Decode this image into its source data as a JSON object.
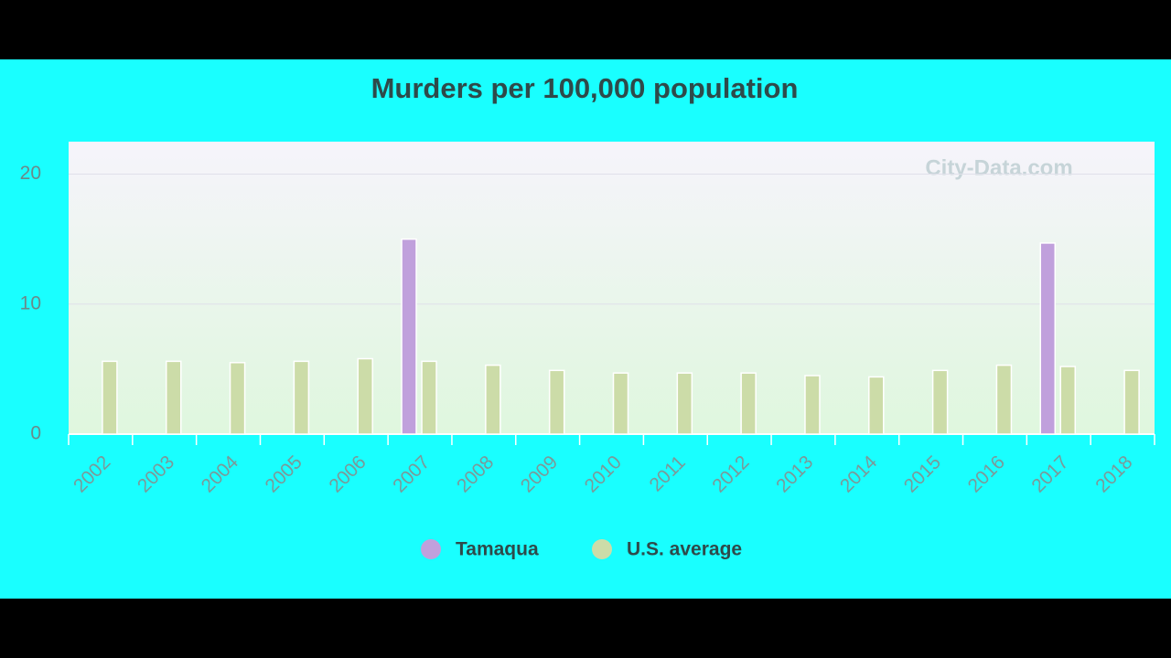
{
  "chart_data": {
    "type": "bar",
    "title": "Murders per 100,000 population",
    "watermark": "City-Data.com",
    "categories": [
      "2002",
      "2003",
      "2004",
      "2005",
      "2006",
      "2007",
      "2008",
      "2009",
      "2010",
      "2011",
      "2012",
      "2013",
      "2014",
      "2015",
      "2016",
      "2017",
      "2018"
    ],
    "series": [
      {
        "name": "Tamaqua",
        "color": "#c0a0dc",
        "values": [
          null,
          null,
          null,
          null,
          null,
          15.0,
          null,
          null,
          null,
          null,
          null,
          null,
          null,
          null,
          null,
          14.7,
          null
        ]
      },
      {
        "name": "U.S. average",
        "color": "#ccdca8",
        "values": [
          5.6,
          5.6,
          5.5,
          5.6,
          5.8,
          5.6,
          5.3,
          4.9,
          4.7,
          4.7,
          4.7,
          4.5,
          4.4,
          4.9,
          5.3,
          5.2,
          4.9
        ]
      }
    ],
    "ylim": [
      0,
      22.5
    ],
    "yticks": [
      0,
      10,
      20
    ],
    "grid": true
  }
}
